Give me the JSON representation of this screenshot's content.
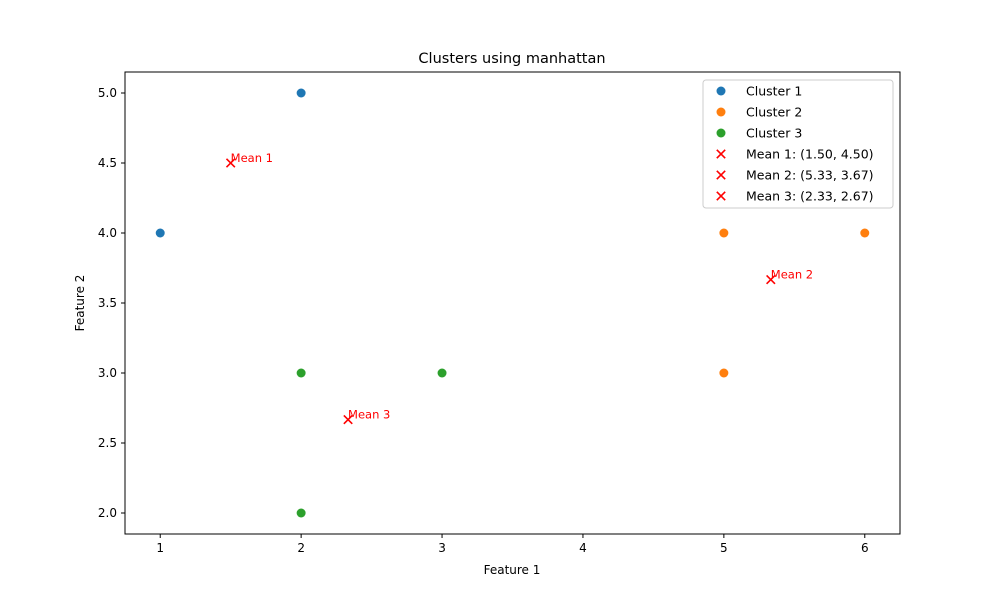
{
  "chart_data": {
    "type": "scatter",
    "title": "Clusters using manhattan",
    "xlabel": "Feature 1",
    "ylabel": "Feature 2",
    "xlim": [
      0.75,
      6.25
    ],
    "ylim": [
      1.85,
      5.15
    ],
    "xticks": [
      1,
      2,
      3,
      4,
      5,
      6
    ],
    "yticks": [
      2.0,
      2.5,
      3.0,
      3.5,
      4.0,
      4.5,
      5.0
    ],
    "grid": false,
    "legend_position": "top-right",
    "series": [
      {
        "name": "Cluster 1",
        "marker": "circle",
        "color": "#1f77b4",
        "points": [
          [
            2,
            5
          ],
          [
            1,
            4
          ]
        ]
      },
      {
        "name": "Cluster 2",
        "marker": "circle",
        "color": "#ff7f0e",
        "points": [
          [
            5,
            4
          ],
          [
            6,
            4
          ],
          [
            5,
            3
          ]
        ]
      },
      {
        "name": "Cluster 3",
        "marker": "circle",
        "color": "#2ca02c",
        "points": [
          [
            2,
            3
          ],
          [
            3,
            3
          ],
          [
            2,
            2
          ]
        ]
      }
    ],
    "means": [
      {
        "name": "Mean 1: (1.50, 4.50)",
        "label": "Mean 1",
        "marker": "x",
        "color": "#ff0000",
        "point": [
          1.5,
          4.5
        ]
      },
      {
        "name": "Mean 2: (5.33, 3.67)",
        "label": "Mean 2",
        "marker": "x",
        "color": "#ff0000",
        "point": [
          5.333,
          3.667
        ]
      },
      {
        "name": "Mean 3: (2.33, 2.67)",
        "label": "Mean 3",
        "marker": "x",
        "color": "#ff0000",
        "point": [
          2.333,
          2.667
        ]
      }
    ]
  }
}
